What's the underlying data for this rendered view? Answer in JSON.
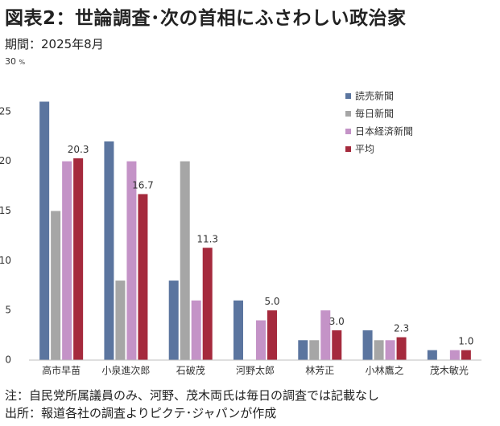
{
  "title": "図表2：世論調査･次の首相にふさわしい政治家",
  "period": "期間：2025年8月",
  "notes": [
    "注：自民党所属議員のみ、河野、茂木両氏は毎日の調査では記載なし",
    "出所：報道各社の調査よりピクテ･ジャパンが作成"
  ],
  "chart_data": {
    "type": "bar",
    "y_unit": "%",
    "ylim": [
      0,
      30
    ],
    "yticks": [
      0,
      5,
      10,
      15,
      20,
      25,
      30
    ],
    "grid": false,
    "legend_position": "top-right",
    "categories": [
      "高市早苗",
      "小泉進次郎",
      "石破茂",
      "河野太郎",
      "林芳正",
      "小林鷹之",
      "茂木敏光"
    ],
    "series": [
      {
        "name": "読売新聞",
        "color": "#5B759F",
        "values": [
          26,
          22,
          8,
          6,
          2,
          3,
          1
        ]
      },
      {
        "name": "毎日新聞",
        "color": "#A6A6A6",
        "values": [
          15,
          8,
          20,
          null,
          2,
          2,
          null
        ]
      },
      {
        "name": "日本経済新聞",
        "color": "#C493C7",
        "values": [
          20,
          20,
          6,
          4,
          5,
          2,
          1
        ]
      },
      {
        "name": "平均",
        "color": "#A52A3D",
        "values": [
          20.3,
          16.7,
          11.3,
          5.0,
          3.0,
          2.3,
          1.0
        ]
      }
    ],
    "data_labels": {
      "series": "平均",
      "labels": [
        "20.3",
        "16.7",
        "11.3",
        "5.0",
        "3.0",
        "2.3",
        "1.0"
      ]
    }
  }
}
